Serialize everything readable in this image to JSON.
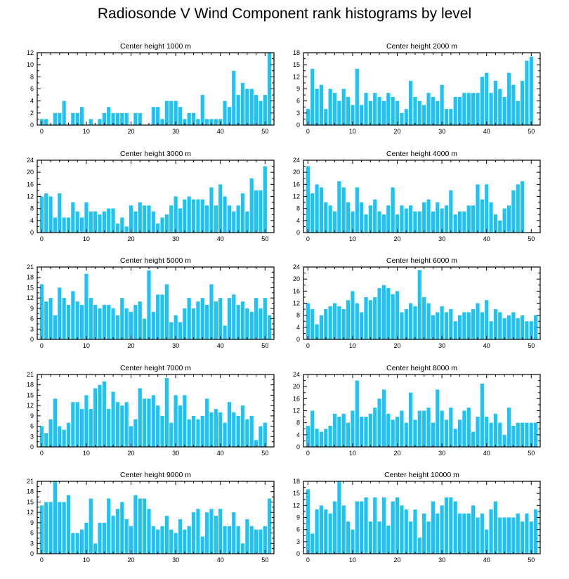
{
  "title": "Radiosonde V Wind Component rank histograms by level",
  "bar_color": "#1EC3F5",
  "chart_data": [
    {
      "type": "bar",
      "title": "Center height 1000 m",
      "xlim": [
        -1,
        52
      ],
      "ylim": [
        0,
        12
      ],
      "xticks": [
        0,
        10,
        20,
        30,
        40,
        50
      ],
      "yticks": [
        0,
        2,
        4,
        6,
        8,
        10,
        12
      ],
      "x": [
        0,
        1,
        2,
        3,
        4,
        5,
        6,
        7,
        8,
        9,
        10,
        11,
        12,
        13,
        14,
        15,
        16,
        17,
        18,
        19,
        20,
        21,
        22,
        23,
        24,
        25,
        26,
        27,
        28,
        29,
        30,
        31,
        32,
        33,
        34,
        35,
        36,
        37,
        38,
        39,
        40,
        41,
        42,
        43,
        44,
        45,
        46,
        47,
        48,
        49,
        50,
        51
      ],
      "values": [
        1,
        1,
        0,
        2,
        2,
        4,
        0,
        2,
        2,
        3,
        0,
        1,
        0,
        1,
        2,
        3,
        2,
        2,
        2,
        2,
        0,
        2,
        2,
        0,
        0,
        3,
        3,
        1,
        4,
        4,
        4,
        3,
        1,
        2,
        2,
        1,
        5,
        1,
        1,
        1,
        1,
        4,
        3,
        9,
        5,
        7,
        6,
        6,
        5,
        4,
        5,
        12
      ]
    },
    {
      "type": "bar",
      "title": "Center height 2000 m",
      "xlim": [
        -1,
        52
      ],
      "ylim": [
        0,
        18
      ],
      "xticks": [
        0,
        10,
        20,
        30,
        40,
        50
      ],
      "yticks": [
        0,
        3,
        6,
        9,
        12,
        15,
        18
      ],
      "x": [
        0,
        1,
        2,
        3,
        4,
        5,
        6,
        7,
        8,
        9,
        10,
        11,
        12,
        13,
        14,
        15,
        16,
        17,
        18,
        19,
        20,
        21,
        22,
        23,
        24,
        25,
        26,
        27,
        28,
        29,
        30,
        31,
        32,
        33,
        34,
        35,
        36,
        37,
        38,
        39,
        40,
        41,
        42,
        43,
        44,
        45,
        46,
        47,
        48,
        49,
        50,
        51
      ],
      "values": [
        4,
        14,
        9,
        10,
        4,
        9,
        8,
        6,
        9,
        7,
        5,
        14,
        5,
        8,
        6,
        8,
        7,
        6,
        8,
        7,
        6,
        3,
        4,
        11,
        7,
        6,
        5,
        8,
        7,
        6,
        10,
        4,
        4,
        7,
        7,
        8,
        8,
        8,
        8,
        12,
        13,
        8,
        11,
        9,
        7,
        13,
        10,
        6,
        11,
        16,
        17,
        0
      ]
    },
    {
      "type": "bar",
      "title": "Center height 3000 m",
      "xlim": [
        -1,
        52
      ],
      "ylim": [
        0,
        24
      ],
      "xticks": [
        0,
        10,
        20,
        30,
        40,
        50
      ],
      "yticks": [
        0,
        4,
        8,
        12,
        16,
        20,
        24
      ],
      "x": [
        0,
        1,
        2,
        3,
        4,
        5,
        6,
        7,
        8,
        9,
        10,
        11,
        12,
        13,
        14,
        15,
        16,
        17,
        18,
        19,
        20,
        21,
        22,
        23,
        24,
        25,
        26,
        27,
        28,
        29,
        30,
        31,
        32,
        33,
        34,
        35,
        36,
        37,
        38,
        39,
        40,
        41,
        42,
        43,
        44,
        45,
        46,
        47,
        48,
        49,
        50,
        51
      ],
      "values": [
        12,
        13,
        12,
        5,
        13,
        5,
        5,
        10,
        7,
        5,
        10,
        7,
        7,
        6,
        7,
        8,
        8,
        3,
        5,
        2,
        9,
        7,
        10,
        9,
        9,
        7,
        3,
        5,
        6,
        9,
        12,
        8,
        11,
        12,
        11,
        11,
        11,
        9,
        15,
        9,
        16,
        12,
        9,
        7,
        9,
        13,
        7,
        18,
        14,
        14,
        22,
        0
      ]
    },
    {
      "type": "bar",
      "title": "Center height 4000 m",
      "xlim": [
        -1,
        52
      ],
      "ylim": [
        0,
        24
      ],
      "xticks": [
        0,
        10,
        20,
        30,
        40,
        50
      ],
      "yticks": [
        0,
        4,
        8,
        12,
        16,
        20,
        24
      ],
      "x": [
        0,
        1,
        2,
        3,
        4,
        5,
        6,
        7,
        8,
        9,
        10,
        11,
        12,
        13,
        14,
        15,
        16,
        17,
        18,
        19,
        20,
        21,
        22,
        23,
        24,
        25,
        26,
        27,
        28,
        29,
        30,
        31,
        32,
        33,
        34,
        35,
        36,
        37,
        38,
        39,
        40,
        41,
        42,
        43,
        44,
        45,
        46,
        47,
        48,
        49,
        50,
        51
      ],
      "values": [
        22,
        13,
        16,
        15,
        10,
        9,
        7,
        17,
        15,
        10,
        7,
        15,
        10,
        6,
        9,
        11,
        7,
        6,
        9,
        15,
        6,
        9,
        8,
        9,
        7,
        7,
        10,
        11,
        7,
        10,
        8,
        9,
        14,
        6,
        7,
        7,
        9,
        9,
        16,
        11,
        16,
        10,
        6,
        4,
        8,
        9,
        14,
        16,
        17,
        0,
        0,
        0
      ]
    },
    {
      "type": "bar",
      "title": "Center height 5000 m",
      "xlim": [
        -1,
        52
      ],
      "ylim": [
        0,
        21
      ],
      "xticks": [
        0,
        10,
        20,
        30,
        40,
        50
      ],
      "yticks": [
        0,
        3,
        6,
        9,
        12,
        15,
        18,
        21
      ],
      "x": [
        0,
        1,
        2,
        3,
        4,
        5,
        6,
        7,
        8,
        9,
        10,
        11,
        12,
        13,
        14,
        15,
        16,
        17,
        18,
        19,
        20,
        21,
        22,
        23,
        24,
        25,
        26,
        27,
        28,
        29,
        30,
        31,
        32,
        33,
        34,
        35,
        36,
        37,
        38,
        39,
        40,
        41,
        42,
        43,
        44,
        45,
        46,
        47,
        48,
        49,
        50,
        51
      ],
      "values": [
        16,
        11,
        12,
        7,
        15,
        12,
        10,
        14,
        11,
        10,
        19,
        12,
        10,
        9,
        10,
        10,
        9,
        7,
        12,
        9,
        8,
        10,
        11,
        6,
        20,
        8,
        13,
        13,
        16,
        5,
        7,
        5,
        9,
        12,
        9,
        11,
        12,
        10,
        16,
        11,
        12,
        4,
        12,
        13,
        10,
        11,
        9,
        8,
        12,
        9,
        12,
        7
      ]
    },
    {
      "type": "bar",
      "title": "Center height 6000 m",
      "xlim": [
        -1,
        52
      ],
      "ylim": [
        0,
        24
      ],
      "xticks": [
        0,
        10,
        20,
        30,
        40,
        50
      ],
      "yticks": [
        0,
        4,
        8,
        12,
        16,
        20,
        24
      ],
      "x": [
        0,
        1,
        2,
        3,
        4,
        5,
        6,
        7,
        8,
        9,
        10,
        11,
        12,
        13,
        14,
        15,
        16,
        17,
        18,
        19,
        20,
        21,
        22,
        23,
        24,
        25,
        26,
        27,
        28,
        29,
        30,
        31,
        32,
        33,
        34,
        35,
        36,
        37,
        38,
        39,
        40,
        41,
        42,
        43,
        44,
        45,
        46,
        47,
        48,
        49,
        50,
        51
      ],
      "values": [
        12,
        10,
        5,
        8,
        10,
        11,
        12,
        11,
        10,
        13,
        16,
        12,
        9,
        14,
        13,
        14,
        17,
        18,
        17,
        15,
        16,
        9,
        10,
        12,
        11,
        23,
        14,
        12,
        8,
        9,
        11,
        9,
        10,
        6,
        8,
        9,
        9,
        10,
        12,
        9,
        13,
        6,
        10,
        9,
        7,
        8,
        9,
        7,
        8,
        6,
        6,
        8
      ]
    },
    {
      "type": "bar",
      "title": "Center height 7000 m",
      "xlim": [
        -1,
        52
      ],
      "ylim": [
        0,
        21
      ],
      "xticks": [
        0,
        10,
        20,
        30,
        40,
        50
      ],
      "yticks": [
        0,
        3,
        6,
        9,
        12,
        15,
        18,
        21
      ],
      "x": [
        0,
        1,
        2,
        3,
        4,
        5,
        6,
        7,
        8,
        9,
        10,
        11,
        12,
        13,
        14,
        15,
        16,
        17,
        18,
        19,
        20,
        21,
        22,
        23,
        24,
        25,
        26,
        27,
        28,
        29,
        30,
        31,
        32,
        33,
        34,
        35,
        36,
        37,
        38,
        39,
        40,
        41,
        42,
        43,
        44,
        45,
        46,
        47,
        48,
        49,
        50,
        51
      ],
      "values": [
        6,
        4,
        8,
        14,
        6,
        5,
        7,
        13,
        13,
        11,
        15,
        11,
        17,
        18,
        19,
        11,
        16,
        13,
        12,
        13,
        6,
        8,
        17,
        14,
        14,
        15,
        12,
        9,
        20,
        7,
        15,
        12,
        15,
        8,
        9,
        8,
        9,
        14,
        10,
        11,
        10,
        7,
        13,
        10,
        9,
        12,
        8,
        9,
        2,
        6,
        7,
        0
      ]
    },
    {
      "type": "bar",
      "title": "Center height 8000 m",
      "xlim": [
        -1,
        52
      ],
      "ylim": [
        0,
        24
      ],
      "xticks": [
        0,
        10,
        20,
        30,
        40,
        50
      ],
      "yticks": [
        0,
        4,
        8,
        12,
        16,
        20,
        24
      ],
      "x": [
        0,
        1,
        2,
        3,
        4,
        5,
        6,
        7,
        8,
        9,
        10,
        11,
        12,
        13,
        14,
        15,
        16,
        17,
        18,
        19,
        20,
        21,
        22,
        23,
        24,
        25,
        26,
        27,
        28,
        29,
        30,
        31,
        32,
        33,
        34,
        35,
        36,
        37,
        38,
        39,
        40,
        41,
        42,
        43,
        44,
        45,
        46,
        47,
        48,
        49,
        50,
        51
      ],
      "values": [
        7,
        12,
        6,
        5,
        6,
        7,
        11,
        10,
        11,
        8,
        12,
        22,
        10,
        10,
        11,
        13,
        16,
        19,
        11,
        9,
        10,
        12,
        8,
        18,
        9,
        12,
        12,
        13,
        8,
        19,
        12,
        9,
        13,
        6,
        9,
        12,
        13,
        5,
        10,
        21,
        10,
        8,
        11,
        8,
        4,
        13,
        7,
        8,
        8,
        8,
        8,
        8
      ]
    },
    {
      "type": "bar",
      "title": "Center height 9000 m",
      "xlim": [
        -1,
        52
      ],
      "ylim": [
        0,
        21
      ],
      "xticks": [
        0,
        10,
        20,
        30,
        40,
        50
      ],
      "yticks": [
        0,
        3,
        6,
        9,
        12,
        15,
        18,
        21
      ],
      "x": [
        0,
        1,
        2,
        3,
        4,
        5,
        6,
        7,
        8,
        9,
        10,
        11,
        12,
        13,
        14,
        15,
        16,
        17,
        18,
        19,
        20,
        21,
        22,
        23,
        24,
        25,
        26,
        27,
        28,
        29,
        30,
        31,
        32,
        33,
        34,
        35,
        36,
        37,
        38,
        39,
        40,
        41,
        42,
        43,
        44,
        45,
        46,
        47,
        48,
        49,
        50,
        51
      ],
      "values": [
        14,
        15,
        15,
        21,
        15,
        15,
        17,
        6,
        6,
        7,
        9,
        16,
        3,
        9,
        9,
        16,
        11,
        13,
        15,
        10,
        8,
        17,
        16,
        16,
        13,
        8,
        7,
        8,
        11,
        7,
        6,
        10,
        7,
        8,
        12,
        13,
        5,
        12,
        13,
        11,
        13,
        8,
        8,
        12,
        8,
        3,
        10,
        8,
        7,
        7,
        8,
        16
      ]
    },
    {
      "type": "bar",
      "title": "Center height 10000 m",
      "xlim": [
        -1,
        52
      ],
      "ylim": [
        0,
        18
      ],
      "xticks": [
        0,
        10,
        20,
        30,
        40,
        50
      ],
      "yticks": [
        0,
        3,
        6,
        9,
        12,
        15,
        18
      ],
      "x": [
        0,
        1,
        2,
        3,
        4,
        5,
        6,
        7,
        8,
        9,
        10,
        11,
        12,
        13,
        14,
        15,
        16,
        17,
        18,
        19,
        20,
        21,
        22,
        23,
        24,
        25,
        26,
        27,
        28,
        29,
        30,
        31,
        32,
        33,
        34,
        35,
        36,
        37,
        38,
        39,
        40,
        41,
        42,
        43,
        44,
        45,
        46,
        47,
        48,
        49,
        50,
        51
      ],
      "values": [
        16,
        5,
        11,
        12,
        11,
        10,
        13,
        18,
        12,
        8,
        6,
        13,
        13,
        14,
        8,
        14,
        8,
        14,
        7,
        13,
        14,
        12,
        11,
        8,
        11,
        4,
        10,
        8,
        13,
        10,
        12,
        14,
        14,
        13,
        10,
        10,
        10,
        12,
        9,
        10,
        6,
        11,
        13,
        9,
        9,
        9,
        9,
        10,
        8,
        10,
        8,
        11
      ]
    }
  ]
}
